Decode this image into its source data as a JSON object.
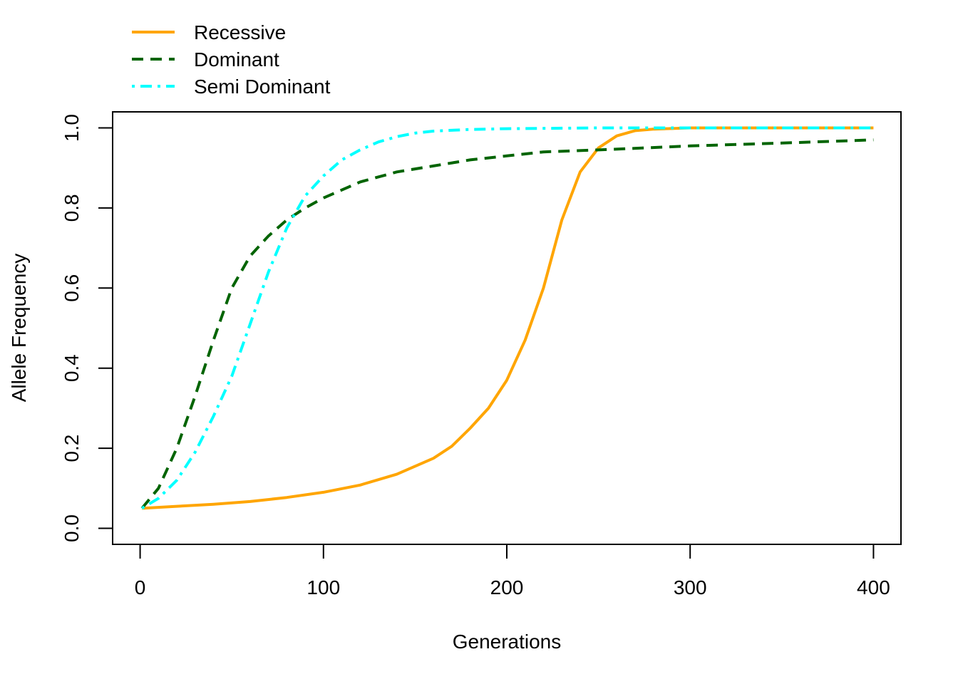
{
  "chart_data": {
    "type": "line",
    "title": "",
    "xlabel": "Generations",
    "ylabel": "Allele Frequency",
    "xlim": [
      -15,
      415
    ],
    "ylim": [
      -0.04,
      1.04
    ],
    "xticks": [
      0,
      100,
      200,
      300,
      400
    ],
    "yticks": [
      0.0,
      0.2,
      0.4,
      0.6,
      0.8,
      1.0
    ],
    "xtick_labels": [
      "0",
      "100",
      "200",
      "300",
      "400"
    ],
    "ytick_labels": [
      "0.0",
      "0.2",
      "0.4",
      "0.6",
      "0.8",
      "1.0"
    ],
    "grid": false,
    "legend_position": "top-left, outside plot",
    "series": [
      {
        "name": "Recessive",
        "color": "#FFA500",
        "dash": "solid",
        "x": [
          1,
          20,
          40,
          60,
          80,
          100,
          120,
          140,
          160,
          170,
          180,
          190,
          200,
          210,
          220,
          230,
          240,
          250,
          260,
          270,
          280,
          300,
          350,
          400
        ],
        "y": [
          0.05,
          0.055,
          0.06,
          0.067,
          0.077,
          0.09,
          0.108,
          0.135,
          0.175,
          0.205,
          0.25,
          0.3,
          0.37,
          0.47,
          0.6,
          0.77,
          0.89,
          0.95,
          0.98,
          0.993,
          0.997,
          1.0,
          1.0,
          1.0
        ]
      },
      {
        "name": "Dominant",
        "color": "#006400",
        "dash": "dashed",
        "x": [
          1,
          10,
          20,
          30,
          40,
          50,
          60,
          70,
          80,
          90,
          100,
          120,
          140,
          160,
          180,
          200,
          220,
          250,
          300,
          350,
          400
        ],
        "y": [
          0.05,
          0.1,
          0.2,
          0.33,
          0.47,
          0.6,
          0.68,
          0.73,
          0.77,
          0.8,
          0.825,
          0.865,
          0.89,
          0.905,
          0.92,
          0.93,
          0.94,
          0.945,
          0.955,
          0.962,
          0.97
        ]
      },
      {
        "name": "Semi Dominant",
        "color": "#00FFFF",
        "dash": "dotdash",
        "x": [
          1,
          10,
          20,
          30,
          40,
          50,
          60,
          70,
          80,
          90,
          100,
          110,
          120,
          130,
          140,
          150,
          160,
          180,
          200,
          250,
          300,
          400
        ],
        "y": [
          0.05,
          0.075,
          0.12,
          0.19,
          0.28,
          0.38,
          0.51,
          0.64,
          0.75,
          0.83,
          0.88,
          0.92,
          0.945,
          0.965,
          0.978,
          0.987,
          0.992,
          0.996,
          0.998,
          1.0,
          1.0,
          1.0
        ]
      }
    ]
  }
}
